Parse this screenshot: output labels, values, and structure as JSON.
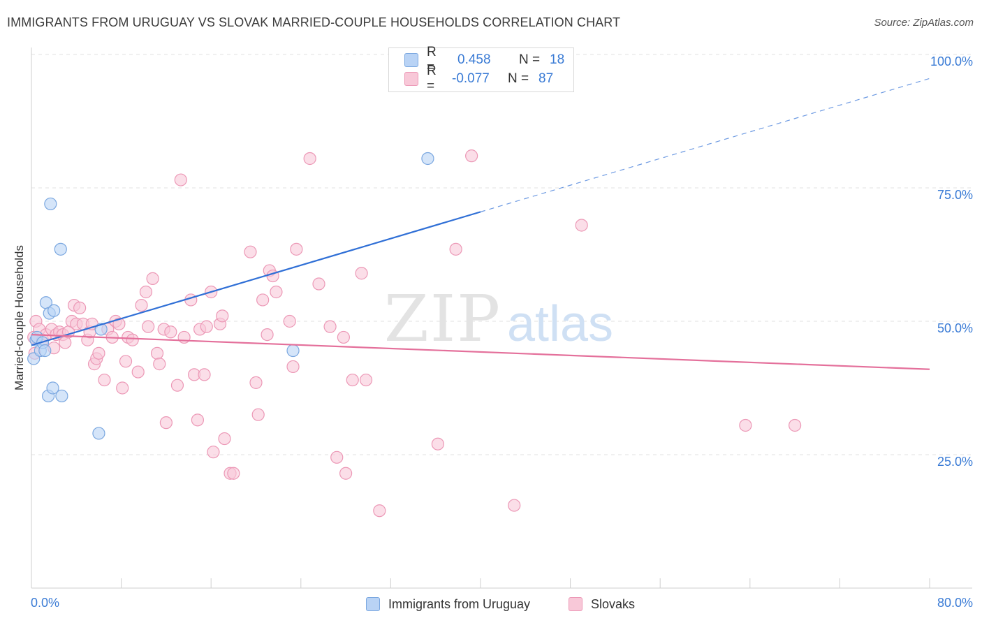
{
  "header": {
    "title": "IMMIGRANTS FROM URUGUAY VS SLOVAK MARRIED-COUPLE HOUSEHOLDS CORRELATION CHART",
    "source": "Source: ZipAtlas.com"
  },
  "watermark": {
    "zip": "ZIP",
    "atlas": "atlas"
  },
  "legend": {
    "rows": [
      {
        "r_label": "R =",
        "r_value": "0.458",
        "n_label": "N =",
        "n_value": "18"
      },
      {
        "r_label": "R =",
        "r_value": "-0.077",
        "n_label": "N =",
        "n_value": "87"
      }
    ]
  },
  "colors": {
    "blue_fill": "#b9d3f5",
    "blue_stroke": "#7aa7e0",
    "blue_line": "#2f6fd6",
    "pink_fill": "#f8c8d8",
    "pink_stroke": "#ec98b6",
    "pink_line": "#e4709b",
    "tick_label": "#3a7bd5",
    "grid": "#e2e2e2"
  },
  "chart_data": {
    "type": "scatter",
    "title": "IMMIGRANTS FROM URUGUAY VS SLOVAK MARRIED-COUPLE HOUSEHOLDS CORRELATION CHART",
    "xlabel": "",
    "ylabel": "Married-couple Households",
    "xlim": [
      0,
      80
    ],
    "ylim": [
      0,
      100
    ],
    "x_tick_labels": [
      "0.0%",
      "80.0%"
    ],
    "y_ticks": [
      25,
      50,
      75,
      100
    ],
    "y_tick_labels": [
      "25.0%",
      "50.0%",
      "75.0%",
      "100.0%"
    ],
    "grid": true,
    "series": [
      {
        "name": "Immigrants from Uruguay",
        "color": "blue",
        "r": 0.458,
        "n": 18,
        "trend": {
          "x0": 0,
          "y0": 45.5,
          "x1": 40,
          "y1": 70.5,
          "dash_to_x": 80,
          "dash_to_y": 95.5
        },
        "points": [
          [
            0.2,
            43
          ],
          [
            0.4,
            46.5
          ],
          [
            0.5,
            47
          ],
          [
            0.8,
            44.5
          ],
          [
            1.0,
            46
          ],
          [
            1.2,
            44.5
          ],
          [
            1.3,
            53.5
          ],
          [
            1.5,
            36
          ],
          [
            1.6,
            51.5
          ],
          [
            1.7,
            72
          ],
          [
            1.9,
            37.5
          ],
          [
            2.0,
            52
          ],
          [
            2.6,
            63.5
          ],
          [
            2.7,
            36
          ],
          [
            6.0,
            29
          ],
          [
            6.2,
            48.5
          ],
          [
            23.3,
            44.5
          ],
          [
            35.3,
            80.5
          ]
        ]
      },
      {
        "name": "Slovaks",
        "color": "pink",
        "r": -0.077,
        "n": 87,
        "trend": {
          "x0": 0,
          "y0": 47.5,
          "x1": 80,
          "y1": 41
        },
        "points": [
          [
            0.2,
            47
          ],
          [
            0.4,
            50
          ],
          [
            0.7,
            48.5
          ],
          [
            1.0,
            46.5
          ],
          [
            1.3,
            47.5
          ],
          [
            1.8,
            48.5
          ],
          [
            2.0,
            45
          ],
          [
            2.2,
            47.5
          ],
          [
            2.5,
            48
          ],
          [
            2.8,
            47.5
          ],
          [
            3.0,
            46
          ],
          [
            3.3,
            48
          ],
          [
            3.6,
            50
          ],
          [
            3.8,
            53
          ],
          [
            4.0,
            49.5
          ],
          [
            4.3,
            52.5
          ],
          [
            4.6,
            49.5
          ],
          [
            5.0,
            46.5
          ],
          [
            5.2,
            48
          ],
          [
            5.4,
            49.5
          ],
          [
            5.6,
            42
          ],
          [
            5.8,
            43
          ],
          [
            6.0,
            44
          ],
          [
            6.5,
            39
          ],
          [
            6.8,
            48.5
          ],
          [
            7.2,
            47
          ],
          [
            7.5,
            50
          ],
          [
            7.8,
            49.5
          ],
          [
            8.1,
            37.5
          ],
          [
            8.4,
            42.5
          ],
          [
            8.6,
            47
          ],
          [
            9.0,
            46.5
          ],
          [
            9.5,
            40.5
          ],
          [
            9.8,
            53
          ],
          [
            10.2,
            55.5
          ],
          [
            10.4,
            49
          ],
          [
            10.8,
            58
          ],
          [
            11.2,
            44
          ],
          [
            11.4,
            42
          ],
          [
            11.8,
            48.5
          ],
          [
            12.0,
            31
          ],
          [
            12.4,
            48
          ],
          [
            13.0,
            38
          ],
          [
            13.3,
            76.5
          ],
          [
            13.6,
            47
          ],
          [
            14.2,
            54
          ],
          [
            14.5,
            40
          ],
          [
            14.8,
            31.5
          ],
          [
            15.0,
            48.5
          ],
          [
            15.4,
            40
          ],
          [
            15.6,
            49
          ],
          [
            16.0,
            55.5
          ],
          [
            16.2,
            25.5
          ],
          [
            16.8,
            49.5
          ],
          [
            17.0,
            51
          ],
          [
            17.2,
            28
          ],
          [
            17.7,
            21.5
          ],
          [
            18.0,
            21.5
          ],
          [
            19.5,
            63
          ],
          [
            20.0,
            38.5
          ],
          [
            20.2,
            32.5
          ],
          [
            20.6,
            54
          ],
          [
            21.0,
            47.5
          ],
          [
            21.2,
            59.5
          ],
          [
            21.5,
            58.5
          ],
          [
            21.8,
            55.5
          ],
          [
            23.0,
            50
          ],
          [
            23.3,
            41.5
          ],
          [
            23.6,
            63.5
          ],
          [
            24.8,
            80.5
          ],
          [
            25.6,
            57
          ],
          [
            26.6,
            49
          ],
          [
            27.2,
            24.5
          ],
          [
            27.8,
            47
          ],
          [
            28.0,
            21.5
          ],
          [
            28.6,
            39
          ],
          [
            29.4,
            59
          ],
          [
            29.8,
            39
          ],
          [
            31.0,
            14.5
          ],
          [
            36.2,
            27
          ],
          [
            37.8,
            63.5
          ],
          [
            39.2,
            81
          ],
          [
            43.0,
            15.5
          ],
          [
            49.0,
            68
          ],
          [
            63.6,
            30.5
          ],
          [
            68.0,
            30.5
          ],
          [
            0.3,
            44
          ]
        ]
      }
    ]
  }
}
